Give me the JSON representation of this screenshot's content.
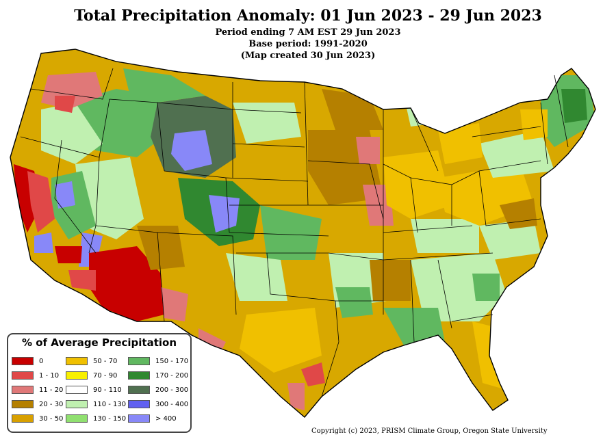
{
  "title": "Total Precipitation Anomaly: 01 Jun 2023 - 29 Jun 2023",
  "subtitle_lines": [
    "Period ending 7 AM EST 29 Jun 2023",
    "Base period: 1991-2020",
    "(Map created 30 Jun 2023)"
  ],
  "legend": {
    "title": "% of Average Precipitation",
    "items": [
      {
        "label": "0",
        "color": "#c80000"
      },
      {
        "label": "1 - 10",
        "color": "#e04848"
      },
      {
        "label": "11 - 20",
        "color": "#e07878"
      },
      {
        "label": "20 - 30",
        "color": "#b58000"
      },
      {
        "label": "30 - 50",
        "color": "#d8a000"
      },
      {
        "label": "50 - 70",
        "color": "#f0c000"
      },
      {
        "label": "70 - 90",
        "color": "#f8f000"
      },
      {
        "label": "90 - 110",
        "color": "#ffffff"
      },
      {
        "label": "110 - 130",
        "color": "#c0f0b0"
      },
      {
        "label": "130 - 150",
        "color": "#90e070"
      },
      {
        "label": "150 - 170",
        "color": "#60b860"
      },
      {
        "label": "170 - 200",
        "color": "#308830"
      },
      {
        "label": "200 - 300",
        "color": "#507050"
      },
      {
        "label": "300 - 400",
        "color": "#6060f0"
      },
      {
        "label": "> 400",
        "color": "#8888f8"
      }
    ]
  },
  "copyright": "Copyright (c) 2023, PRISM Climate Group, Oregon State University",
  "map_colors": {
    "base": "#d8a800",
    "dry_light": "#f0c000",
    "dry_dark": "#b58000",
    "extreme_dry": "#c80000",
    "very_dry": "#e04848",
    "dry_pink": "#e07878",
    "wet_light": "#c0f0b0",
    "wet_mid": "#90e070",
    "wet": "#60b860",
    "wet_dark": "#308830",
    "wet_very": "#507050",
    "wet_blue": "#6060f0",
    "wet_lilac": "#8888f8",
    "normal": "#ffffff",
    "boundary": "#000000"
  }
}
